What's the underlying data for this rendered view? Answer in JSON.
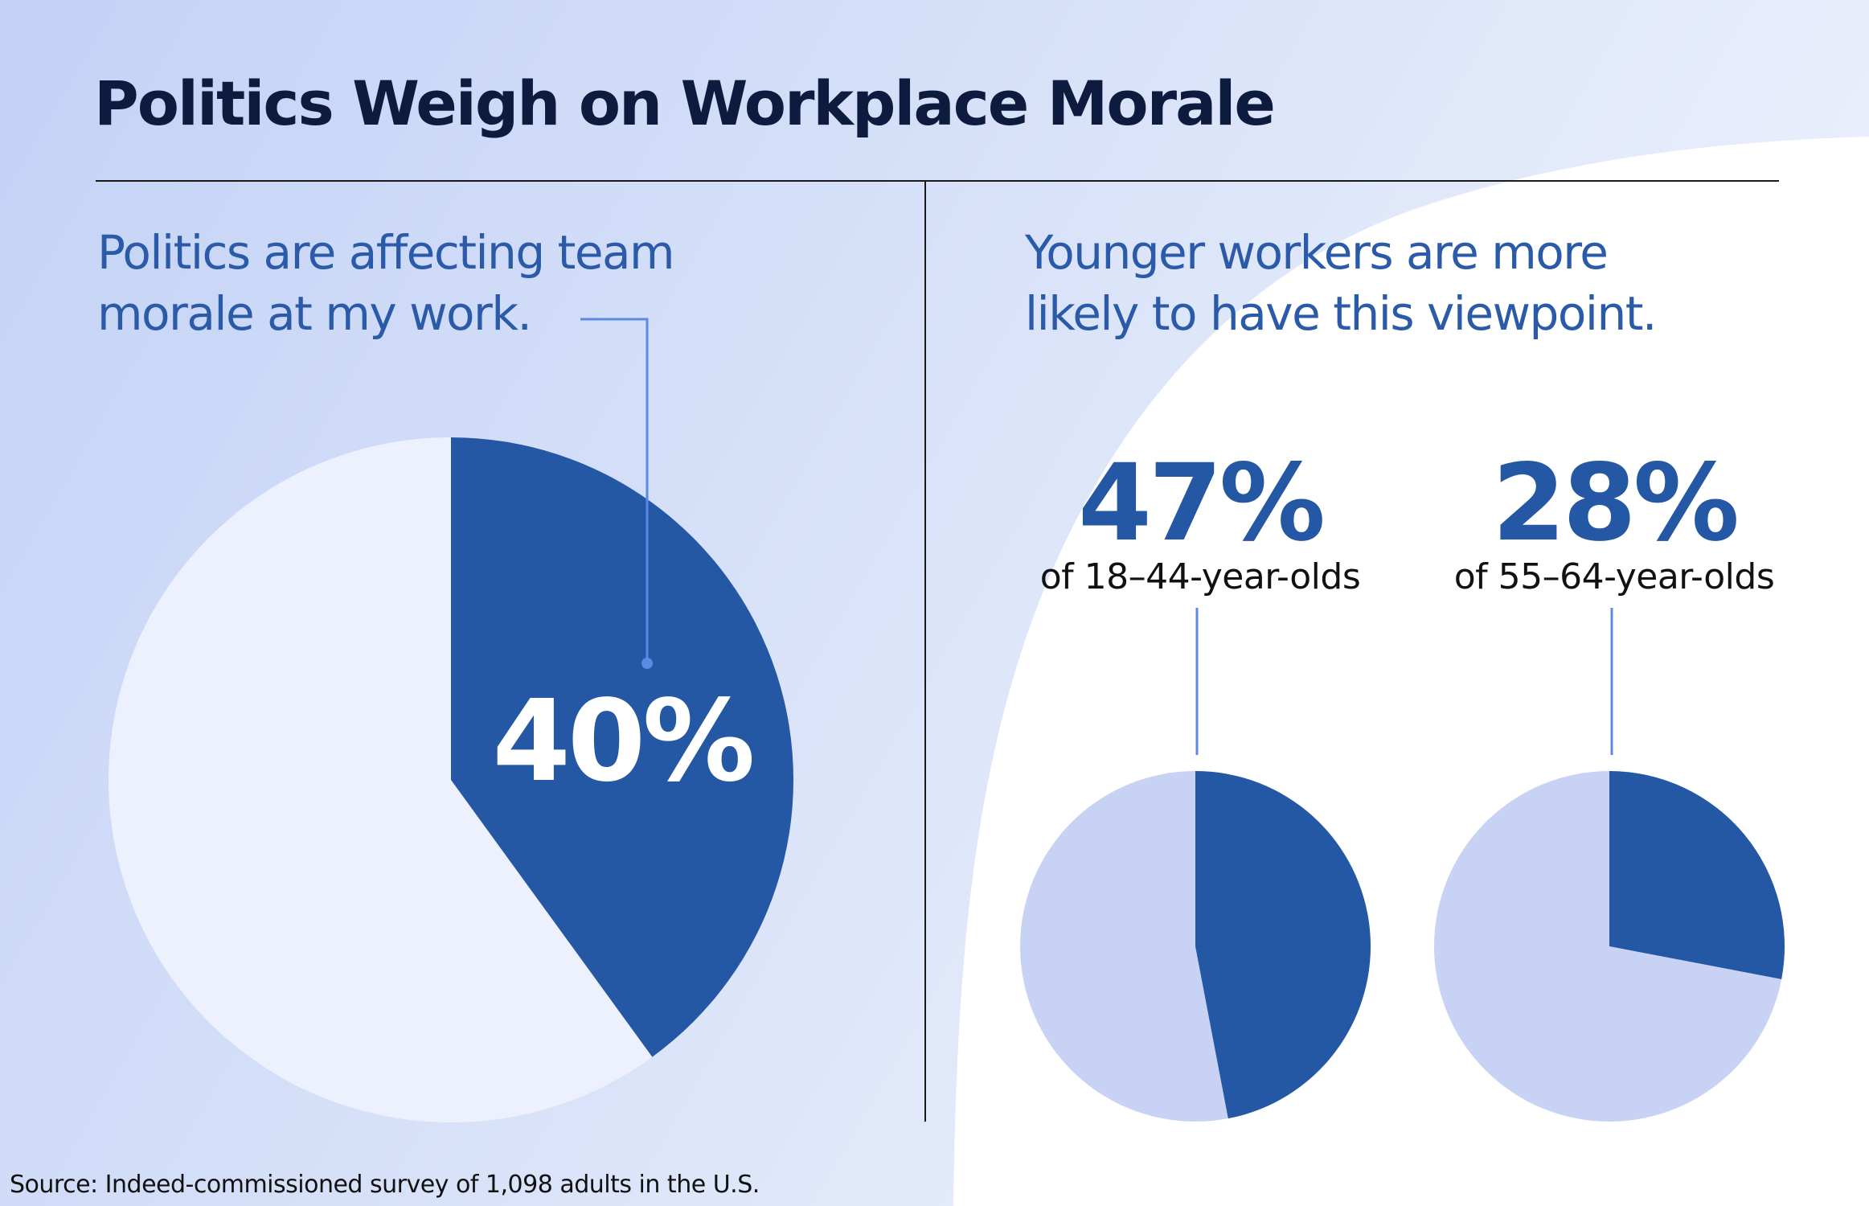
{
  "title": "Politics Weigh on Workplace Morale",
  "left_panel": {
    "subtitle_line1": "Politics are affecting team",
    "subtitle_line2": "morale at my work."
  },
  "right_panel": {
    "subtitle_line1": "Younger workers are more",
    "subtitle_line2": "likely to have this viewpoint."
  },
  "source": "Source: Indeed-commissioned survey of 1,098 adults in the U.S.",
  "colors": {
    "highlight": "#2457a4",
    "main_pie_remainder": "#edf1fd",
    "small_pie_remainder": "#c8d2f5",
    "connector": "#5b8ae6",
    "title": "#0d1b3e",
    "subtitle": "#2a5aa8"
  },
  "chart_data": [
    {
      "type": "pie",
      "label": "40%",
      "values": [
        40,
        60
      ]
    },
    {
      "type": "pie",
      "label": "47%",
      "caption": "of 18–44-year-olds",
      "values": [
        47,
        53
      ]
    },
    {
      "type": "pie",
      "label": "28%",
      "caption": "of 55–64-year-olds",
      "values": [
        28,
        72
      ]
    }
  ]
}
